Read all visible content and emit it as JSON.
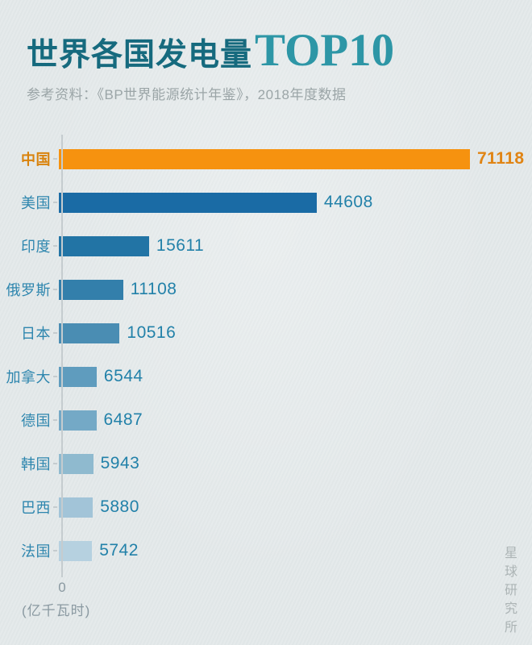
{
  "header": {
    "title_cn": "世界各国发电量",
    "title_en": "TOP10",
    "subtitle": "参考资料：《BP世界能源统计年鉴》，2018年度数据"
  },
  "chart_data": {
    "type": "bar",
    "orientation": "horizontal",
    "title": "世界各国发电量TOP10",
    "source": "《BP世界能源统计年鉴》，2018年度数据",
    "categories": [
      "中国",
      "美国",
      "印度",
      "俄罗斯",
      "日本",
      "加拿大",
      "德国",
      "韩国",
      "巴西",
      "法国"
    ],
    "values": [
      71118,
      44608,
      15611,
      11108,
      10516,
      6544,
      6487,
      5943,
      5880,
      5742
    ],
    "unit": "亿千瓦时",
    "xlabel": "(亿千瓦时)",
    "x_ticks": [
      "0"
    ],
    "xlim": [
      0,
      74000
    ],
    "grid": false,
    "highlight_index": 0,
    "bar_colors": [
      "#f6920f",
      "#1a6ba5",
      "#2274a5",
      "#337fab",
      "#4a8db3",
      "#5f9cbe",
      "#74a9c6",
      "#8fbacf",
      "#a2c4d8",
      "#b6d1e0"
    ],
    "label_color": "#2e86ae",
    "value_color": "#2281a9",
    "highlight_label_color": "#d9830d",
    "highlight_value_color": "#e08414",
    "axis_color": "#c5cccf"
  },
  "axis": {
    "zero_label": "0",
    "unit_label": "(亿千瓦时)"
  },
  "watermark": {
    "text": "星球研究所"
  },
  "colors": {
    "background": "#e4e9ea",
    "title_cn": "#166a7e",
    "title_en": "#2d96a6",
    "subtitle": "#9ba5a7",
    "accent_orange": "#f6920f"
  }
}
